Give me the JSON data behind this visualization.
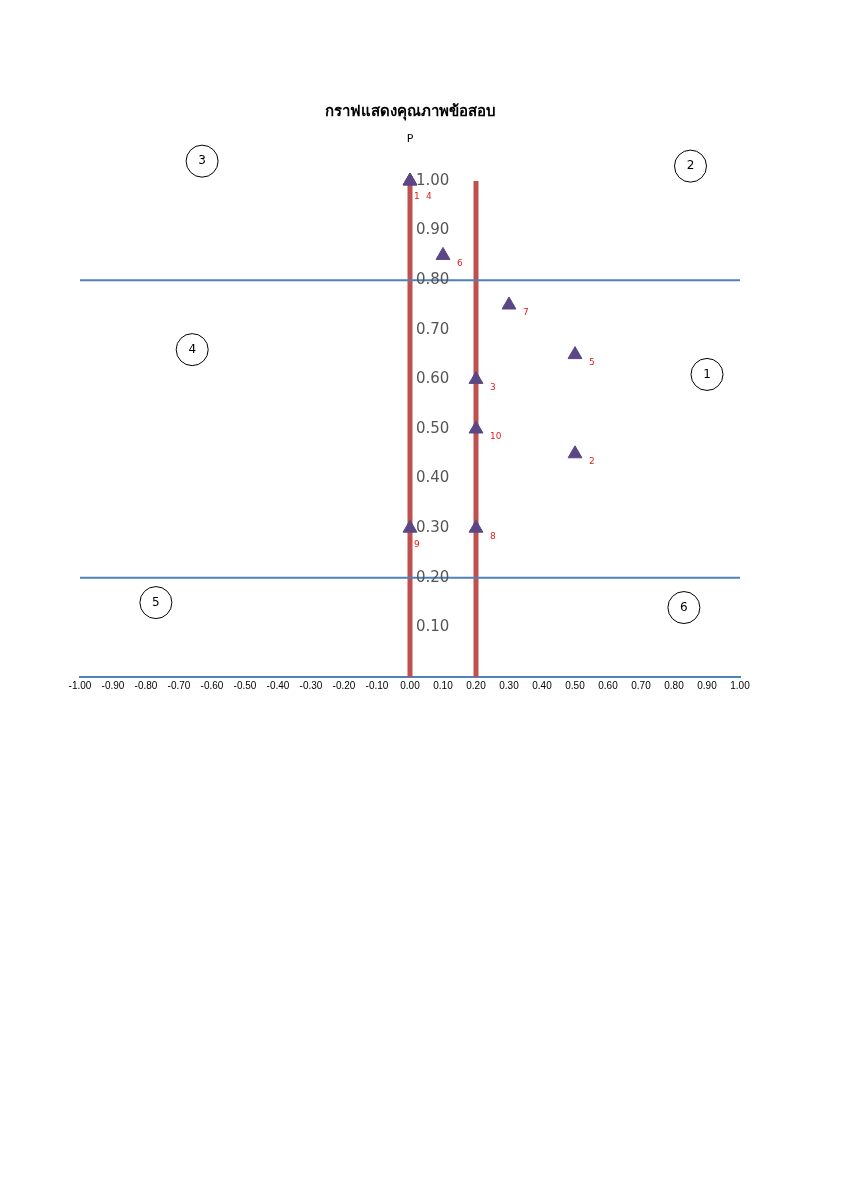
{
  "chart_data": {
    "type": "scatter",
    "title": "กราฟแสดงคุณภาพข้อสอบ",
    "ylabel": "P",
    "x": [
      0,
      0.5,
      0.2,
      0,
      0.5,
      0.1,
      0.3,
      0.2,
      0,
      0.2
    ],
    "series": [
      {
        "color": "#5b4785",
        "values": [
          1,
          0.45,
          0.6,
          1,
          0.65,
          0.85,
          0.75,
          0.3,
          0.3,
          0.5
        ]
      }
    ],
    "marker": "triangle",
    "legend": false,
    "grid": false,
    "xlim": [
      -1,
      1
    ],
    "xticks": [
      {
        "value": -1,
        "label": "-1.00"
      },
      {
        "value": -0.9,
        "label": "-0.90"
      },
      {
        "value": -0.8,
        "label": "-0.80"
      },
      {
        "value": -0.7,
        "label": "-0.70"
      },
      {
        "value": -0.6,
        "label": "-0.60"
      },
      {
        "value": -0.5,
        "label": "-0.50"
      },
      {
        "value": -0.4,
        "label": "-0.40"
      },
      {
        "value": -0.3,
        "label": "-0.30"
      },
      {
        "value": -0.2,
        "label": "-0.20"
      },
      {
        "value": -0.1,
        "label": "-0.10"
      },
      {
        "value": 0,
        "label": "0.00"
      },
      {
        "value": 0.1,
        "label": "0.10"
      },
      {
        "value": 0.2,
        "label": "0.20"
      },
      {
        "value": 0.3,
        "label": "0.30"
      },
      {
        "value": 0.4,
        "label": "0.40"
      },
      {
        "value": 0.5,
        "label": "0.50"
      },
      {
        "value": 0.6,
        "label": "0.60"
      },
      {
        "value": 0.7,
        "label": "0.70"
      },
      {
        "value": 0.8,
        "label": "0.80"
      },
      {
        "value": 0.9,
        "label": "0.90"
      },
      {
        "value": 1,
        "label": "1.00"
      }
    ],
    "ylim": [
      0,
      1
    ],
    "yticks": [
      {
        "value": 0.1,
        "label": "0.10"
      },
      {
        "value": 0.2,
        "label": "0.20"
      },
      {
        "value": 0.3,
        "label": "0.30"
      },
      {
        "value": 0.4,
        "label": "0.40"
      },
      {
        "value": 0.5,
        "label": "0.50"
      },
      {
        "value": 0.6,
        "label": "0.60"
      },
      {
        "value": 0.7,
        "label": "0.70"
      },
      {
        "value": 0.8,
        "label": "0.80"
      },
      {
        "value": 0.9,
        "label": "0.90"
      },
      {
        "value": 1,
        "label": "1.00"
      }
    ],
    "ref_lines": [
      {
        "axis": "x",
        "value": 0,
        "color": "#c0504d"
      },
      {
        "axis": "x",
        "value": 0.2,
        "color": "#c0504d"
      },
      {
        "axis": "y",
        "value": 0.8,
        "color": "#4f81bd"
      },
      {
        "axis": "y",
        "value": 0.2,
        "color": "#4f81bd"
      }
    ],
    "annotations": [
      "1",
      "2",
      "3",
      "4",
      "5",
      "6",
      {
        "text": "1",
        "x": 0,
        "y": 1
      },
      {
        "text": "2",
        "x": 0.5,
        "y": 0.45
      },
      {
        "text": "3",
        "x": 0.2,
        "y": 0.6
      },
      {
        "text": "4",
        "x": 0,
        "y": 1
      },
      {
        "text": "5",
        "x": 0.5,
        "y": 0.65
      },
      {
        "text": "6",
        "x": 0.1,
        "y": 0.85
      },
      {
        "text": "7",
        "x": 0.3,
        "y": 0.75
      },
      {
        "text": "8",
        "x": 0.2,
        "y": 0.3
      },
      {
        "text": "9",
        "x": 0,
        "y": 0.3
      },
      {
        "text": "10",
        "x": 0.2,
        "y": 0.5
      }
    ]
  }
}
